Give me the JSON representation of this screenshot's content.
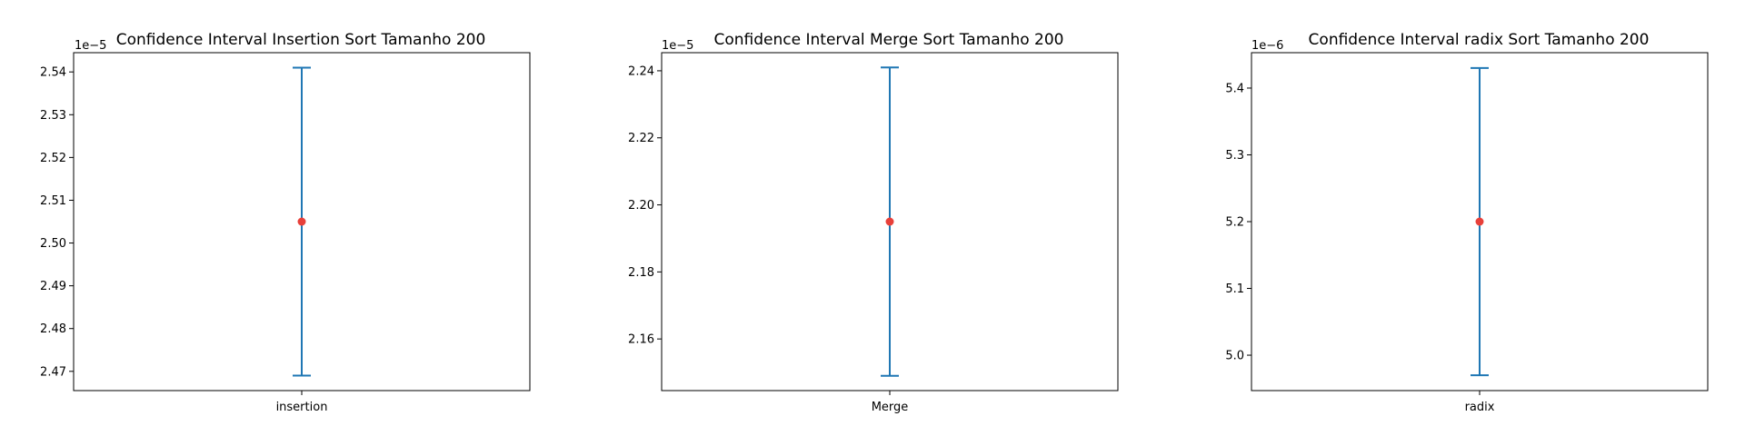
{
  "colors": {
    "interval": "#1f77b4",
    "mean": "#e8403a",
    "axes": "#000000"
  },
  "chart_data": [
    {
      "type": "errorbar",
      "title": "Confidence Interval Insertion Sort Tamanho 200",
      "categories": [
        "insertion"
      ],
      "offset_text": "1e−5",
      "yticks": [
        "2.47",
        "2.48",
        "2.49",
        "2.50",
        "2.51",
        "2.52",
        "2.53",
        "2.54"
      ],
      "ylim": [
        2.4655,
        2.5445
      ],
      "mean": 2.505,
      "ci": [
        2.469,
        2.541
      ]
    },
    {
      "type": "errorbar",
      "title": "Confidence Interval Merge Sort Tamanho 200",
      "categories": [
        "Merge"
      ],
      "offset_text": "1e−5",
      "yticks": [
        "2.16",
        "2.18",
        "2.20",
        "2.22",
        "2.24"
      ],
      "ylim": [
        2.1446,
        2.2454
      ],
      "mean": 2.195,
      "ci": [
        2.149,
        2.241
      ]
    },
    {
      "type": "errorbar",
      "title": "Confidence Interval radix Sort Tamanho 200",
      "categories": [
        "radix"
      ],
      "offset_text": "1e−6",
      "yticks": [
        "5.0",
        "5.1",
        "5.2",
        "5.3",
        "5.4"
      ],
      "ylim": [
        4.947,
        5.453
      ],
      "mean": 5.2,
      "ci": [
        4.97,
        5.43
      ]
    }
  ]
}
